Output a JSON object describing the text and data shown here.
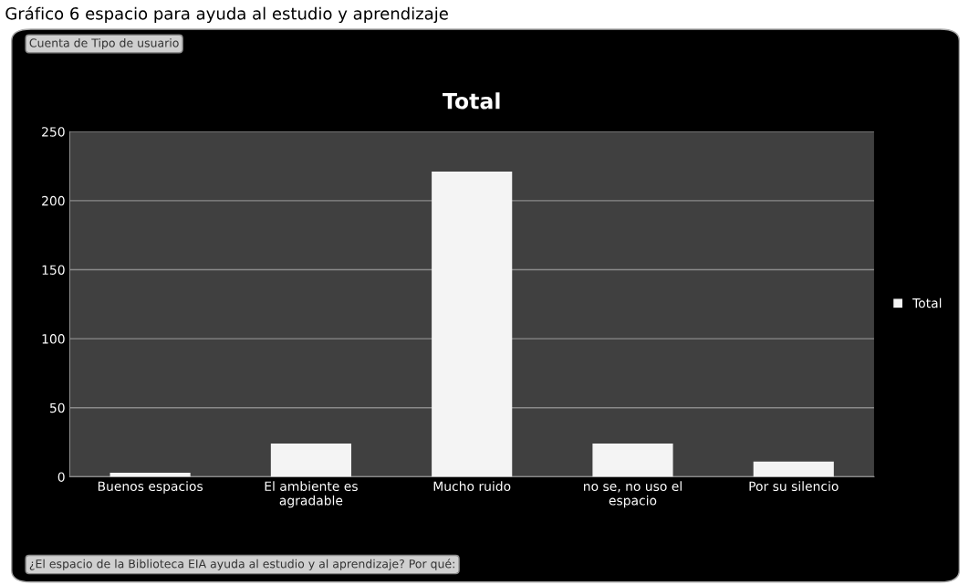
{
  "chart_data": {
    "type": "bar",
    "title": "Total",
    "annotations": [
      "Gráfico 6 espacio para ayuda al estudio y aprendizaje",
      "Cuenta de Tipo de usuario",
      "¿El espacio de la Biblioteca EIA ayuda al estudio y al aprendizaje? Por qué:"
    ],
    "categories": [
      "Buenos espacios",
      "El ambiente es\nagradable",
      "Mucho ruido",
      "no se, no uso el\nespacio",
      "Por su silencio"
    ],
    "series": [
      {
        "name": "Total",
        "color": "#f4f4f4",
        "values": [
          3,
          24,
          221,
          24,
          11
        ]
      }
    ],
    "ylim": [
      0,
      250
    ],
    "yticks": [
      0,
      50,
      100,
      150,
      200,
      250
    ],
    "grid": "y",
    "legend": "right"
  }
}
